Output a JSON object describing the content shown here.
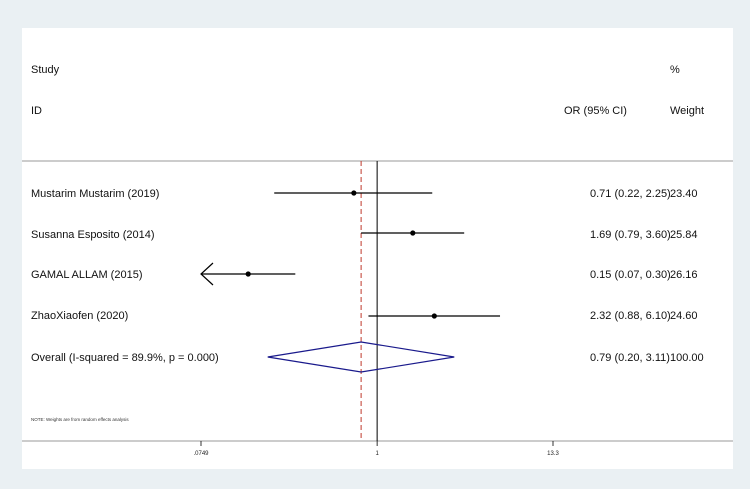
{
  "chart_data": {
    "type": "forest",
    "header": {
      "col1_line1": "Study",
      "col1_line2": "ID",
      "col2_line2": "OR (95% CI)",
      "col3_line1": "%",
      "col3_line2": "Weight"
    },
    "studies": [
      {
        "label": "Mustarim Mustarim (2019)",
        "or": 0.71,
        "lo": 0.22,
        "hi": 2.25,
        "ci_text": "0.71 (0.22, 2.25)",
        "weight": "23.40"
      },
      {
        "label": "Susanna Esposito (2014)",
        "or": 1.69,
        "lo": 0.79,
        "hi": 3.6,
        "ci_text": "1.69 (0.79, 3.60)",
        "weight": "25.84"
      },
      {
        "label": "GAMAL ALLAM  (2015)",
        "or": 0.15,
        "lo": 0.07,
        "hi": 0.3,
        "ci_text": "0.15 (0.07, 0.30)",
        "weight": "26.16"
      },
      {
        "label": "ZhaoXiaofen  (2020)",
        "or": 2.32,
        "lo": 0.88,
        "hi": 6.1,
        "ci_text": "2.32 (0.88, 6.10)",
        "weight": "24.60"
      }
    ],
    "overall": {
      "label": "Overall  (I-squared = 89.9%, p = 0.000)",
      "or": 0.79,
      "lo": 0.2,
      "hi": 3.11,
      "ci_text": "0.79 (0.20, 3.11)",
      "weight": "100.00"
    },
    "note": "NOTE: Weights are from random effects analysis",
    "x_scale": "log",
    "x_range": [
      0.0749,
      13.3
    ],
    "x_ticks": [
      {
        "value": 0.0749,
        "label": ".0749"
      },
      {
        "value": 1,
        "label": "1"
      },
      {
        "value": 13.3,
        "label": "13.3"
      }
    ],
    "null_line": 1,
    "colors": {
      "ci_line": "#000000",
      "diamond": "#1a1a8c",
      "overall_line": "#c0392b",
      "separator": "#9a9a9a"
    }
  }
}
